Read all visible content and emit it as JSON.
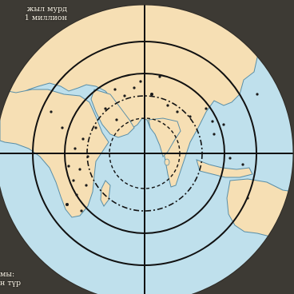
{
  "caption_top": "жыл мурд\u0004\n1 миллион",
  "caption_bottom": "\u0004мы:\n\u0004н түр",
  "colors": {
    "frame": "#3d3a34",
    "ocean": "#bfe0ec",
    "land": "#f6dfb4",
    "coast": "#5a8fa8",
    "grid": "#111111",
    "dots": "#1a1a1a"
  },
  "map_symbols": {
    "concentric_circles": 4,
    "circle_styles": [
      "solid",
      "solid",
      "dash-dot",
      "dashed"
    ],
    "cross_lines": "horizontal and vertical through center",
    "site_markers": "black dots"
  }
}
